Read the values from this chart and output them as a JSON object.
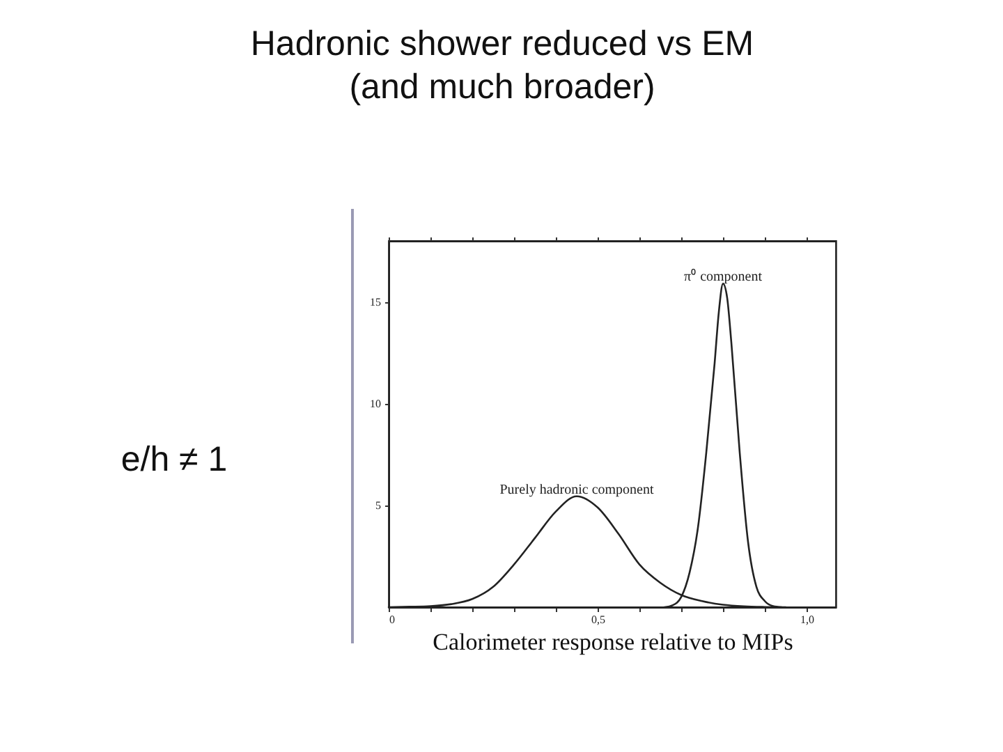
{
  "chart_data": {
    "type": "line",
    "title": "Hadronic shower reduced vs EM\n(and much broader)",
    "xlabel": "Calorimeter response relative to MIPs",
    "annotations": [
      "e/h ≠ 1"
    ],
    "xlim": [
      0,
      1.07
    ],
    "ylim": [
      0,
      18
    ],
    "xticks": [
      {
        "value": 0,
        "label": "0"
      },
      {
        "value": 0.1,
        "label": null
      },
      {
        "value": 0.2,
        "label": null
      },
      {
        "value": 0.3,
        "label": null
      },
      {
        "value": 0.4,
        "label": null
      },
      {
        "value": 0.5,
        "label": "0,5"
      },
      {
        "value": 0.6,
        "label": null
      },
      {
        "value": 0.7,
        "label": null
      },
      {
        "value": 0.8,
        "label": null
      },
      {
        "value": 0.9,
        "label": null
      },
      {
        "value": 1,
        "label": "1,0"
      }
    ],
    "yticks": [
      5,
      10,
      15
    ],
    "grid": false,
    "series": [
      {
        "name": "Purely hadronic component",
        "color": "#222222",
        "x": [
          0,
          0.05,
          0.1,
          0.15,
          0.2,
          0.25,
          0.3,
          0.35,
          0.4,
          0.45,
          0.5,
          0.55,
          0.6,
          0.65,
          0.7,
          0.75,
          0.8,
          0.85,
          0.9,
          0.95
        ],
        "values": [
          0,
          0.02,
          0.05,
          0.15,
          0.4,
          1.0,
          2.1,
          3.4,
          4.7,
          5.45,
          4.9,
          3.6,
          2.1,
          1.2,
          0.6,
          0.3,
          0.12,
          0.04,
          0.01,
          0
        ]
      },
      {
        "name": "π⁰ component",
        "color": "#222222",
        "x": [
          0.66,
          0.68,
          0.7,
          0.72,
          0.74,
          0.76,
          0.78,
          0.79,
          0.8,
          0.81,
          0.82,
          0.84,
          0.86,
          0.88,
          0.9,
          0.92,
          0.94
        ],
        "values": [
          0,
          0.1,
          0.5,
          1.7,
          3.9,
          7.6,
          12.0,
          14.5,
          15.9,
          15.2,
          13.0,
          7.6,
          3.2,
          1.0,
          0.3,
          0.05,
          0
        ]
      }
    ]
  }
}
